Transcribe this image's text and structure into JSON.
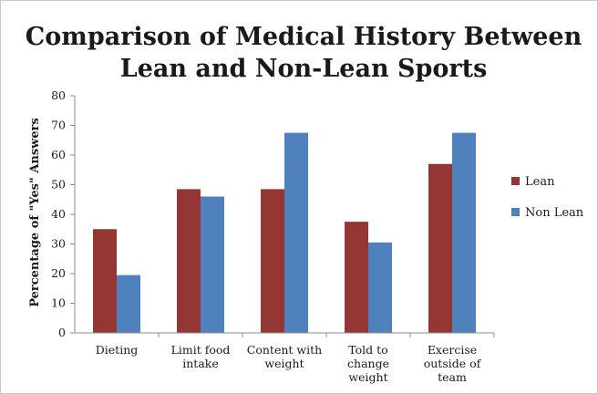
{
  "chart_data": {
    "type": "bar",
    "title_lines": [
      "Comparison of Medical History Between",
      "Lean and Non-Lean Sports"
    ],
    "ylabel": "Percentage of \"Yes\" Answers",
    "xlabel": "",
    "ylim": [
      0,
      80
    ],
    "yticks": [
      0,
      10,
      20,
      30,
      40,
      50,
      60,
      70,
      80
    ],
    "grid": false,
    "legend_position": "right",
    "categories": [
      [
        "Dieting"
      ],
      [
        "Limit food",
        "intake"
      ],
      [
        "Content with",
        "weight"
      ],
      [
        "Told to",
        "change",
        "weight"
      ],
      [
        "Exercise",
        "outside of",
        "team"
      ]
    ],
    "series": [
      {
        "name": "Lean",
        "color": "#943634",
        "values": [
          35,
          48.5,
          48.5,
          37.5,
          57
        ]
      },
      {
        "name": "Non Lean",
        "color": "#4f81bd",
        "values": [
          19.5,
          46,
          67.5,
          30.5,
          67.5
        ]
      }
    ]
  }
}
